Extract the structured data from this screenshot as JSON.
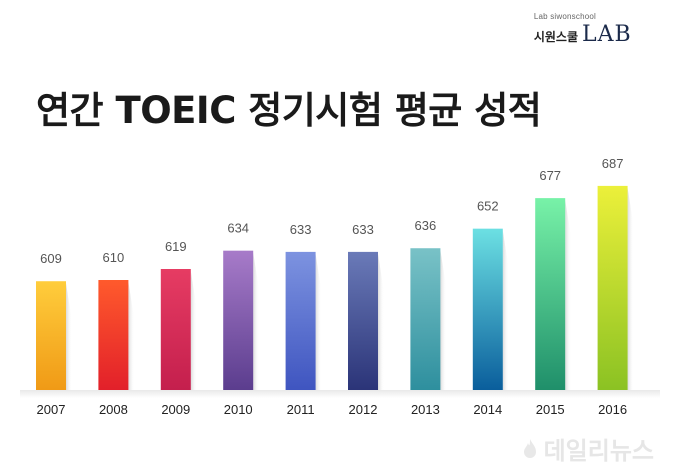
{
  "brand": {
    "small_text": "Lab siwonschool",
    "korean": "시원스쿨",
    "lab": "LAB"
  },
  "title": "연간 TOEIC 정기시험 평균 성적",
  "watermark": "데일리뉴스",
  "chart_data": {
    "type": "bar",
    "title": "연간 TOEIC 정기시험 평균 성적",
    "xlabel": "",
    "ylabel": "",
    "categories": [
      "2007",
      "2008",
      "2009",
      "2010",
      "2011",
      "2012",
      "2013",
      "2014",
      "2015",
      "2016"
    ],
    "values": [
      609,
      610,
      619,
      634,
      633,
      633,
      636,
      652,
      677,
      687
    ],
    "grid": false,
    "legend": "none",
    "colors": [
      [
        "#ffcd3c",
        "#f09a16"
      ],
      [
        "#ff5a2c",
        "#e2202a"
      ],
      [
        "#e63c63",
        "#c41f4d"
      ],
      [
        "#a77bc9",
        "#5b3d8e"
      ],
      [
        "#7d93e0",
        "#3f55c0"
      ],
      [
        "#6a7ab8",
        "#2b3478"
      ],
      [
        "#79c2c7",
        "#2e8f9e"
      ],
      [
        "#6ce0e3",
        "#0a5e9c"
      ],
      [
        "#78f2a8",
        "#1f8f6a"
      ],
      [
        "#ecf03a",
        "#8bc223"
      ]
    ]
  }
}
